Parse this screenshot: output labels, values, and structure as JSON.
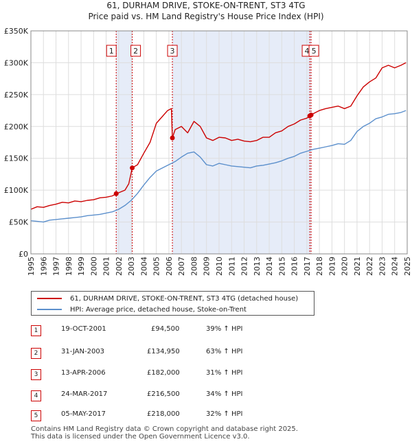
{
  "title": {
    "line1": "61, DURHAM DRIVE, STOKE-ON-TRENT, ST3 4TG",
    "line2": "Price paid vs. HM Land Registry's House Price Index (HPI)"
  },
  "colors": {
    "property": "#cc0000",
    "hpi": "#5b8fcc",
    "shade": "#dde6f5",
    "grid": "#dddddd",
    "vline": "#cc0000"
  },
  "legend": {
    "property_label": "61, DURHAM DRIVE, STOKE-ON-TRENT, ST3 4TG (detached house)",
    "hpi_label": "HPI: Average price, detached house, Stoke-on-Trent"
  },
  "transactions": [
    {
      "num": "1",
      "date": "19-OCT-2001",
      "price": "£94,500",
      "hpi": "39% ↑ HPI"
    },
    {
      "num": "2",
      "date": "31-JAN-2003",
      "price": "£134,950",
      "hpi": "63% ↑ HPI"
    },
    {
      "num": "3",
      "date": "13-APR-2006",
      "price": "£182,000",
      "hpi": "31% ↑ HPI"
    },
    {
      "num": "4",
      "date": "24-MAR-2017",
      "price": "£216,500",
      "hpi": "34% ↑ HPI"
    },
    {
      "num": "5",
      "date": "05-MAY-2017",
      "price": "£218,000",
      "hpi": "32% ↑ HPI"
    }
  ],
  "footer": {
    "line1": "Contains HM Land Registry data © Crown copyright and database right 2025.",
    "line2": "This data is licensed under the Open Government Licence v3.0."
  },
  "chart_data": {
    "type": "line",
    "title": "61, DURHAM DRIVE, STOKE-ON-TRENT, ST3 4TG — Price paid vs. HM Land Registry's House Price Index (HPI)",
    "xlim": [
      1995,
      2025
    ],
    "ylim": [
      0,
      350000
    ],
    "x_ticks": [
      1995,
      1996,
      1997,
      1998,
      1999,
      2000,
      2001,
      2002,
      2003,
      2004,
      2005,
      2006,
      2007,
      2008,
      2009,
      2010,
      2011,
      2012,
      2013,
      2014,
      2015,
      2016,
      2017,
      2018,
      2019,
      2020,
      2021,
      2022,
      2023,
      2024,
      2025
    ],
    "y_ticks": [
      {
        "value": 0,
        "label": "£0"
      },
      {
        "value": 50000,
        "label": "£50K"
      },
      {
        "value": 100000,
        "label": "£100K"
      },
      {
        "value": 150000,
        "label": "£150K"
      },
      {
        "value": 200000,
        "label": "£200K"
      },
      {
        "value": 250000,
        "label": "£250K"
      },
      {
        "value": 300000,
        "label": "£300K"
      },
      {
        "value": 350000,
        "label": "£350K"
      }
    ],
    "grid": true,
    "shaded_ranges": [
      [
        2001.8,
        2003.08
      ],
      [
        2006.28,
        2017.34
      ]
    ],
    "markers": [
      {
        "label": "1",
        "x": 2001.8,
        "y": 94500
      },
      {
        "label": "2",
        "x": 2003.08,
        "y": 134950
      },
      {
        "label": "3",
        "x": 2006.28,
        "y": 182000
      },
      {
        "label": "4",
        "x": 2017.23,
        "y": 216500
      },
      {
        "label": "5",
        "x": 2017.34,
        "y": 218000
      }
    ],
    "series": [
      {
        "name": "61, DURHAM DRIVE, STOKE-ON-TRENT, ST3 4TG (detached house)",
        "x": [
          1995,
          1995.5,
          1996,
          1996.5,
          1997,
          1997.5,
          1998,
          1998.5,
          1999,
          1999.5,
          2000,
          2000.5,
          2001,
          2001.5,
          2001.8,
          2002,
          2002.5,
          2002.8,
          2003.08,
          2003.5,
          2004,
          2004.5,
          2005,
          2005.5,
          2005.9,
          2006.2,
          2006.28,
          2006.5,
          2007,
          2007.5,
          2008,
          2008.5,
          2009,
          2009.5,
          2010,
          2010.5,
          2011,
          2011.5,
          2012,
          2012.5,
          2013,
          2013.5,
          2014,
          2014.5,
          2015,
          2015.5,
          2016,
          2016.5,
          2017,
          2017.23,
          2017.34,
          2017.5,
          2018,
          2018.5,
          2019,
          2019.5,
          2020,
          2020.5,
          2021,
          2021.5,
          2022,
          2022.5,
          2023,
          2023.5,
          2024,
          2024.5,
          2024.9
        ],
        "values": [
          70000,
          74000,
          73000,
          76000,
          78000,
          81000,
          80000,
          83000,
          82000,
          84000,
          85000,
          88000,
          89000,
          91000,
          94500,
          96000,
          100000,
          110000,
          134950,
          140000,
          158000,
          175000,
          205000,
          216000,
          225000,
          228000,
          182000,
          195000,
          200000,
          190000,
          208000,
          200000,
          182000,
          178000,
          183000,
          182000,
          178000,
          180000,
          177000,
          176000,
          178000,
          183000,
          183000,
          190000,
          193000,
          200000,
          204000,
          210000,
          213000,
          216500,
          218000,
          220000,
          225000,
          228000,
          230000,
          232000,
          228000,
          232000,
          248000,
          262000,
          270000,
          276000,
          292000,
          296000,
          292000,
          296000,
          300000
        ]
      },
      {
        "name": "HPI: Average price, detached house, Stoke-on-Trent",
        "x": [
          1995,
          1995.5,
          1996,
          1996.5,
          1997,
          1997.5,
          1998,
          1998.5,
          1999,
          1999.5,
          2000,
          2000.5,
          2001,
          2001.5,
          2002,
          2002.5,
          2003,
          2003.5,
          2004,
          2004.5,
          2005,
          2005.5,
          2006,
          2006.5,
          2007,
          2007.5,
          2008,
          2008.5,
          2009,
          2009.5,
          2010,
          2010.5,
          2011,
          2011.5,
          2012,
          2012.5,
          2013,
          2013.5,
          2014,
          2014.5,
          2015,
          2015.5,
          2016,
          2016.5,
          2017,
          2017.5,
          2018,
          2018.5,
          2019,
          2019.5,
          2020,
          2020.5,
          2021,
          2021.5,
          2022,
          2022.5,
          2023,
          2023.5,
          2024,
          2024.5,
          2024.9
        ],
        "values": [
          52000,
          51000,
          50000,
          53000,
          54000,
          55000,
          56000,
          57000,
          58000,
          60000,
          61000,
          62000,
          64000,
          66000,
          70000,
          76000,
          84000,
          95000,
          108000,
          120000,
          130000,
          135000,
          140000,
          145000,
          152000,
          158000,
          160000,
          152000,
          140000,
          138000,
          142000,
          140000,
          138000,
          137000,
          136000,
          135000,
          138000,
          139000,
          141000,
          143000,
          146000,
          150000,
          153000,
          158000,
          161000,
          164000,
          166000,
          168000,
          170000,
          173000,
          172000,
          178000,
          192000,
          200000,
          205000,
          212000,
          215000,
          219000,
          220000,
          222000,
          225000
        ]
      }
    ]
  }
}
